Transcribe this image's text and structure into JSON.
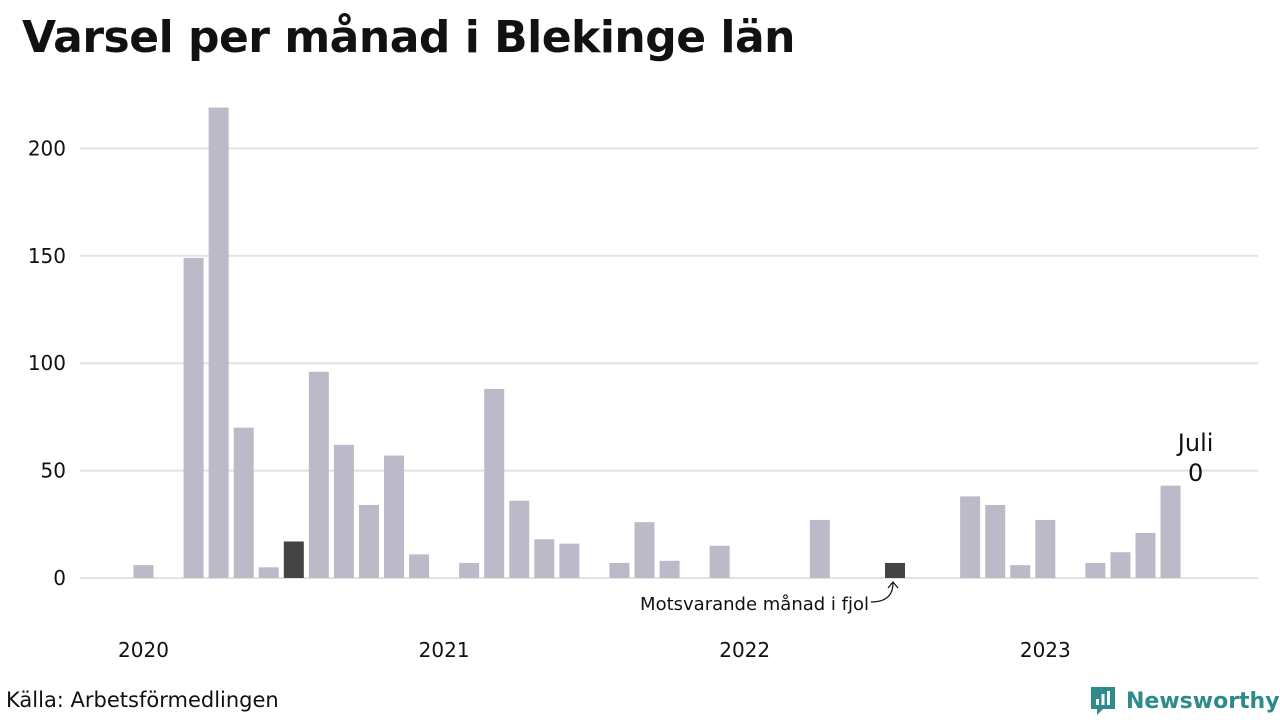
{
  "title": "Varsel per månad i Blekinge län",
  "source": "Källa: Arbetsförmedlingen",
  "brand": {
    "name": "Newsworthy",
    "icon": "newsworthy-logo-icon",
    "color": "#2e8b8b"
  },
  "colors": {
    "bar": "#bcbac8",
    "highlight": "#444444",
    "grid": "#e2e2e2"
  },
  "chart_data": {
    "type": "bar",
    "title": "Varsel per månad i Blekinge län",
    "xlabel": "",
    "ylabel": "",
    "ylim": [
      0,
      230
    ],
    "yticks": [
      0,
      50,
      100,
      150,
      200
    ],
    "year_labels": [
      {
        "label": "2020",
        "index": 0
      },
      {
        "label": "2021",
        "index": 12
      },
      {
        "label": "2022",
        "index": 24
      },
      {
        "label": "2023",
        "index": 36
      }
    ],
    "categories": [
      "2020-01",
      "2020-02",
      "2020-03",
      "2020-04",
      "2020-05",
      "2020-06",
      "2020-07",
      "2020-08",
      "2020-09",
      "2020-10",
      "2020-11",
      "2020-12",
      "2021-01",
      "2021-02",
      "2021-03",
      "2021-04",
      "2021-05",
      "2021-06",
      "2021-07",
      "2021-08",
      "2021-09",
      "2021-10",
      "2021-11",
      "2021-12",
      "2022-01",
      "2022-02",
      "2022-03",
      "2022-04",
      "2022-05",
      "2022-06",
      "2022-07",
      "2022-08",
      "2022-09",
      "2022-10",
      "2022-11",
      "2022-12",
      "2023-01",
      "2023-02",
      "2023-03",
      "2023-04",
      "2023-05",
      "2023-06",
      "2023-07"
    ],
    "values": [
      6,
      0,
      149,
      219,
      70,
      5,
      17,
      96,
      62,
      34,
      57,
      11,
      0,
      7,
      88,
      36,
      18,
      16,
      0,
      7,
      26,
      8,
      0,
      15,
      0,
      0,
      0,
      27,
      0,
      0,
      7,
      0,
      0,
      38,
      34,
      6,
      27,
      0,
      7,
      12,
      21,
      43,
      0
    ],
    "highlighted": [
      "2020-07",
      "2022-07"
    ],
    "annotations": {
      "previous_year": {
        "text": "Motsvarande månad i fjol",
        "category": "2022-07"
      },
      "current": {
        "month": "Juli",
        "value": "0",
        "category": "2023-07"
      }
    },
    "grid": true,
    "legend": "none"
  }
}
